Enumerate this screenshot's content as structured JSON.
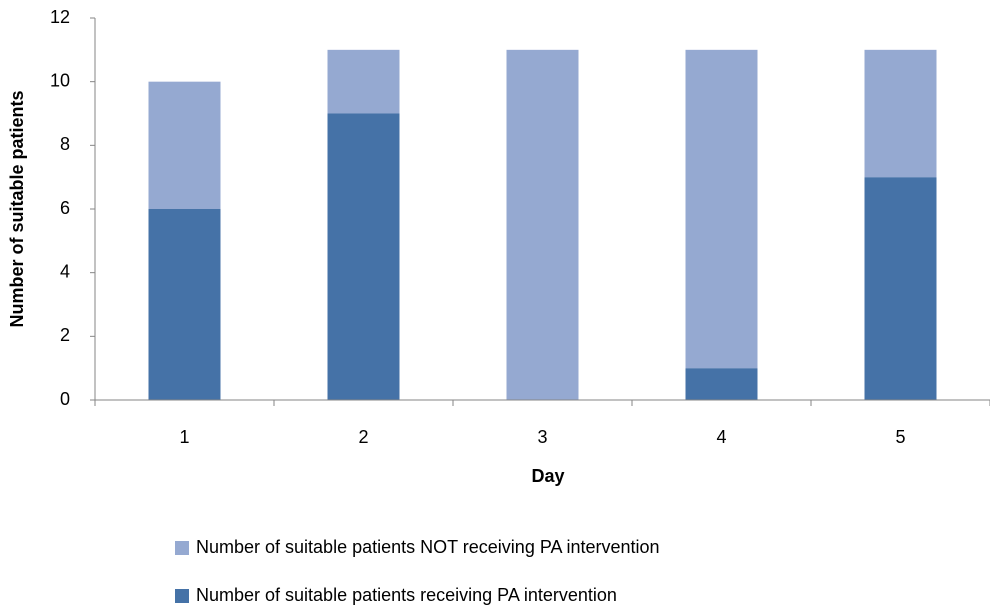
{
  "chart_data": {
    "type": "stacked_bar",
    "x_label": "Day",
    "y_label": "Number of suitable patients",
    "categories": [
      "1",
      "2",
      "3",
      "4",
      "5"
    ],
    "series": [
      {
        "name": "Number of suitable patients receiving PA intervention",
        "color": "#4572a7",
        "values": [
          6,
          9,
          0,
          1,
          7
        ]
      },
      {
        "name": "Number of suitable patients NOT receiving PA intervention",
        "color": "#95a9d1",
        "values": [
          4,
          2,
          11,
          10,
          4
        ]
      }
    ],
    "ylim": [
      0,
      12
    ],
    "yticks": [
      0,
      2,
      4,
      6,
      8,
      10,
      12
    ],
    "grid": false,
    "legend": "bottom"
  }
}
